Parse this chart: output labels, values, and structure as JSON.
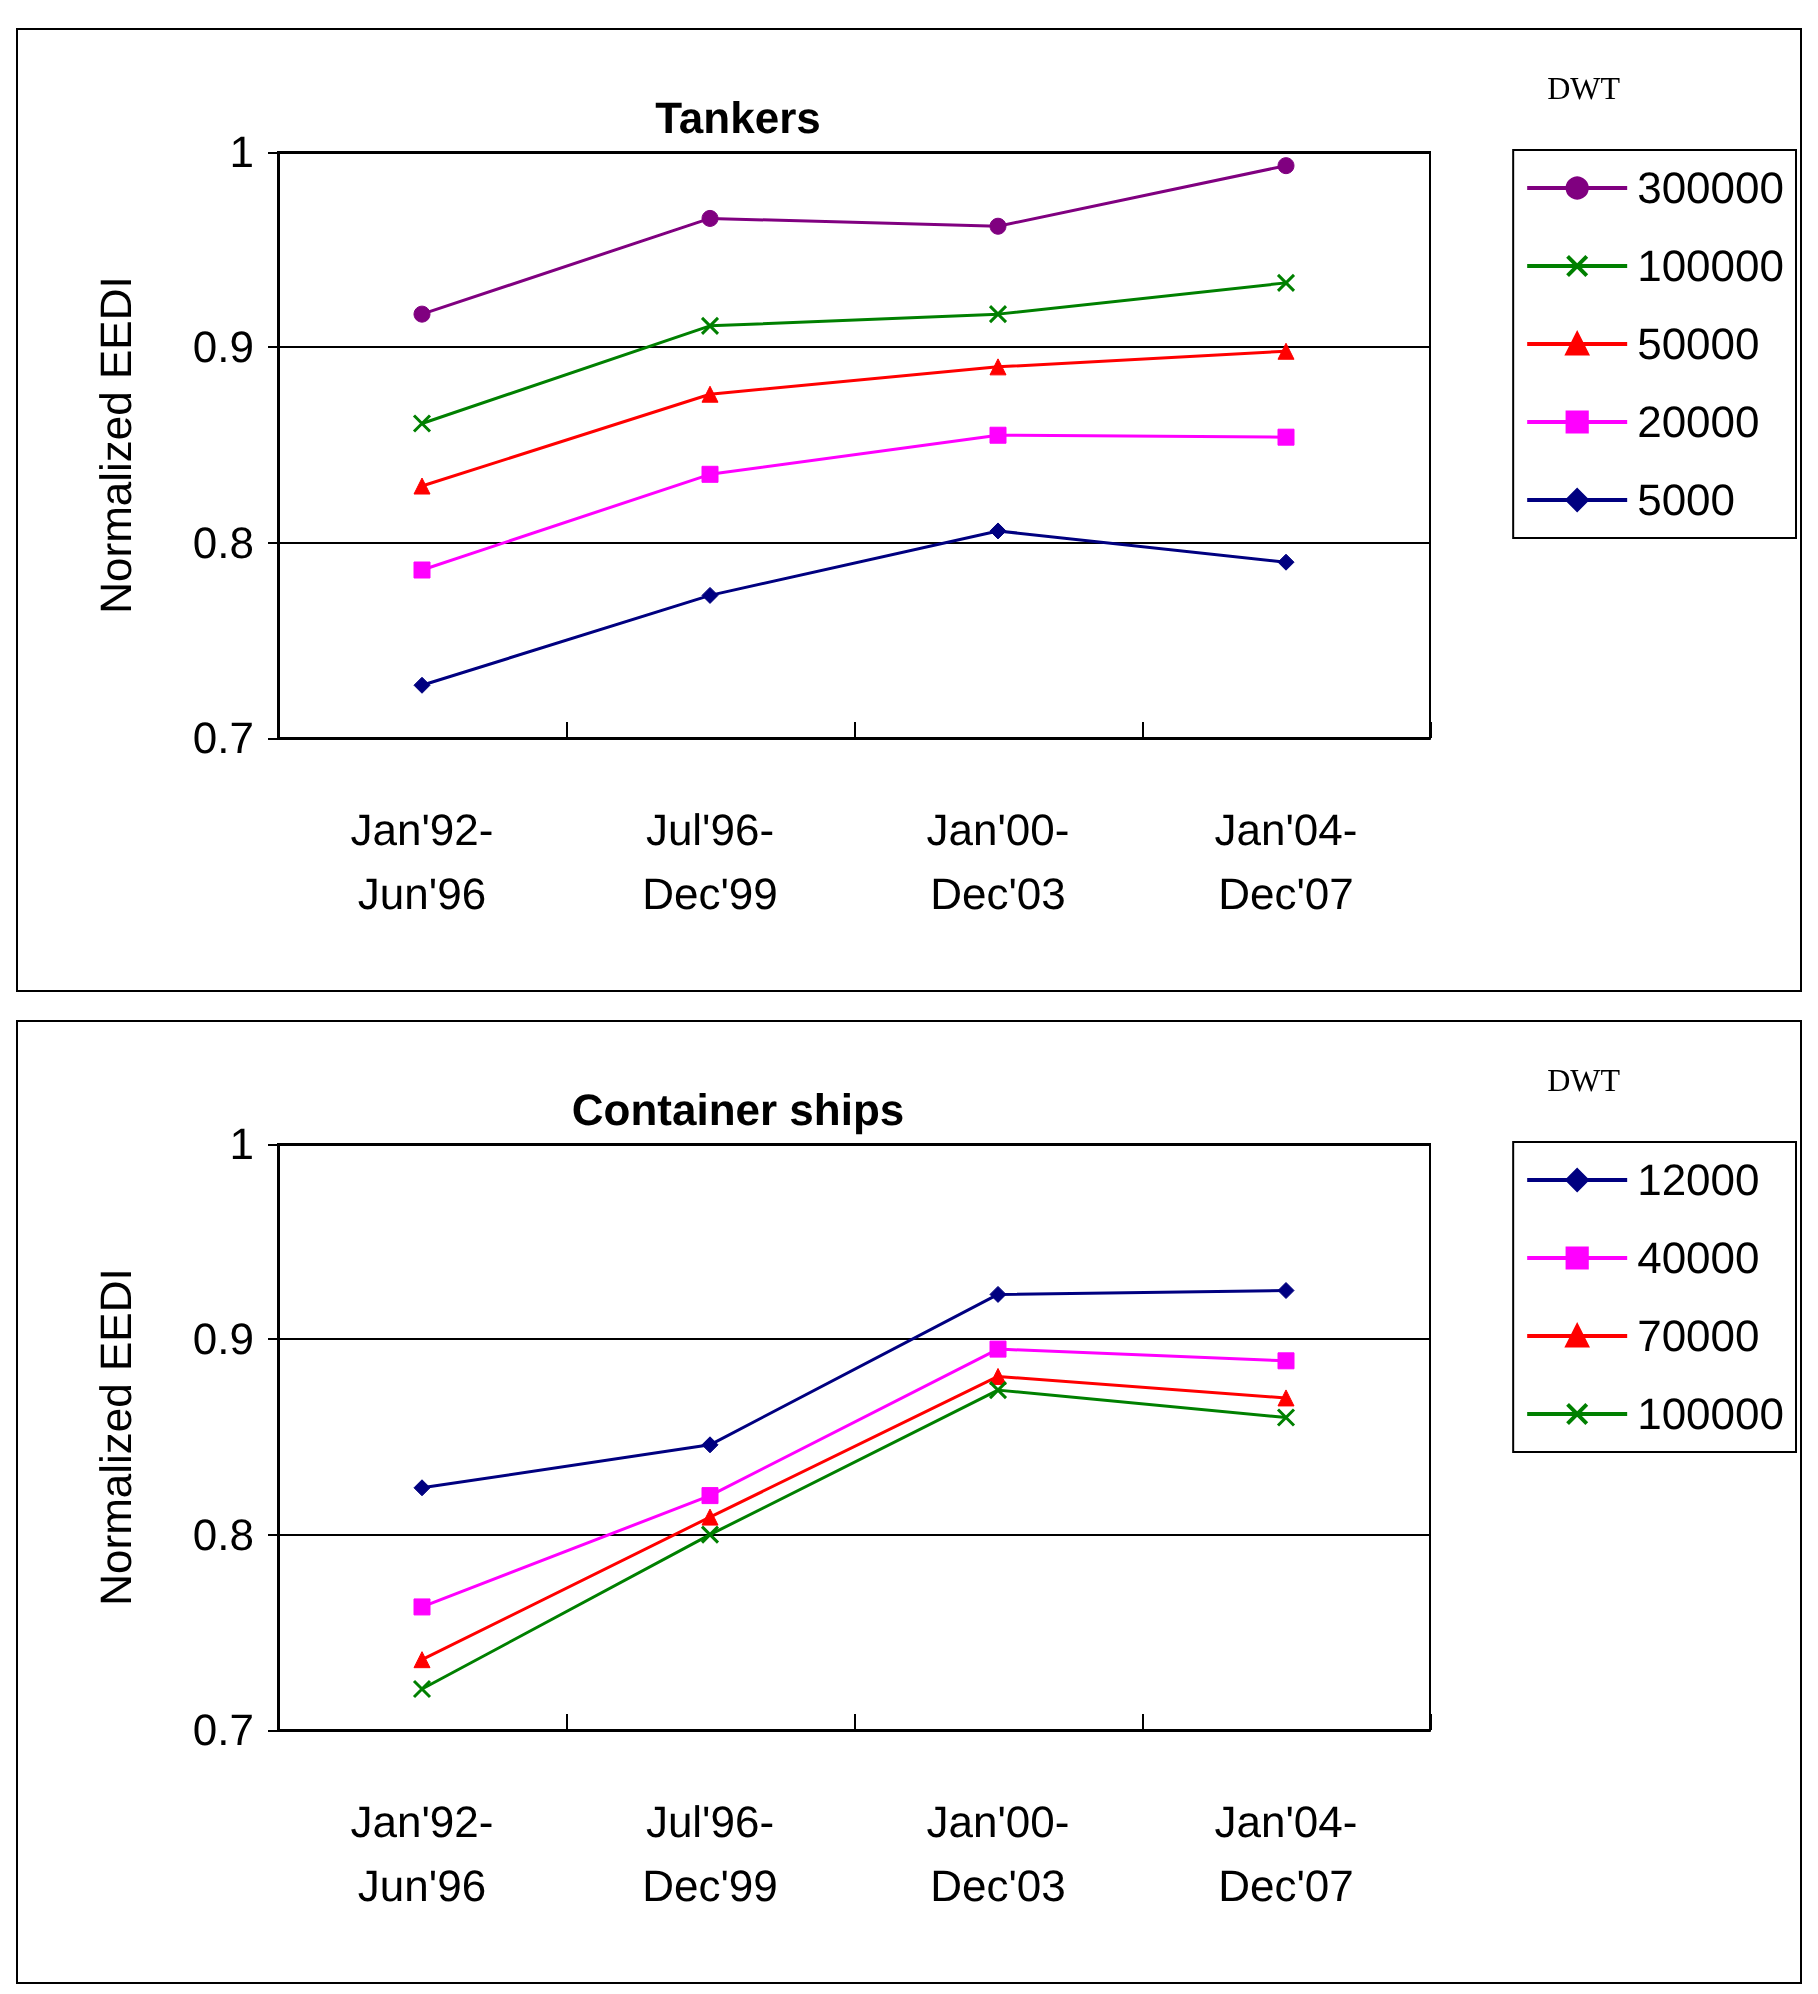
{
  "chart_data": [
    {
      "type": "line",
      "title": "Tankers",
      "ylabel": "Normalized EEDI",
      "legend_title": "DWT",
      "categories": [
        "Jan'92-\nJun'96",
        "Jul'96-\nDec'99",
        "Jan'00-\nDec'03",
        "Jan'04-\nDec'07"
      ],
      "ylim": [
        0.7,
        1
      ],
      "yticks": [
        0.7,
        0.8,
        0.9,
        1
      ],
      "grid": "y",
      "legend": "right",
      "series": [
        {
          "name": "300000",
          "color": "#800080",
          "marker": "circle",
          "values": [
            0.917,
            0.966,
            0.962,
            0.993
          ]
        },
        {
          "name": "100000",
          "color": "#008000",
          "marker": "cross",
          "values": [
            0.861,
            0.911,
            0.917,
            0.933
          ]
        },
        {
          "name": "50000",
          "color": "#ff0000",
          "marker": "triangle",
          "values": [
            0.829,
            0.876,
            0.89,
            0.898
          ]
        },
        {
          "name": "20000",
          "color": "#ff00ff",
          "marker": "square",
          "values": [
            0.786,
            0.835,
            0.855,
            0.854
          ]
        },
        {
          "name": "5000",
          "color": "#000080",
          "marker": "diamond",
          "values": [
            0.727,
            0.773,
            0.806,
            0.79
          ]
        }
      ]
    },
    {
      "type": "line",
      "title": "Container ships",
      "ylabel": "Normalized EEDI",
      "legend_title": "DWT",
      "categories": [
        "Jan'92-\nJun'96",
        "Jul'96-\nDec'99",
        "Jan'00-\nDec'03",
        "Jan'04-\nDec'07"
      ],
      "ylim": [
        0.7,
        1
      ],
      "yticks": [
        0.7,
        0.8,
        0.9,
        1
      ],
      "grid": "y",
      "legend": "right",
      "series": [
        {
          "name": "12000",
          "color": "#000080",
          "marker": "diamond",
          "values": [
            0.824,
            0.846,
            0.923,
            0.925
          ]
        },
        {
          "name": "40000",
          "color": "#ff00ff",
          "marker": "square",
          "values": [
            0.763,
            0.82,
            0.895,
            0.889
          ]
        },
        {
          "name": "70000",
          "color": "#ff0000",
          "marker": "triangle",
          "values": [
            0.736,
            0.809,
            0.881,
            0.87
          ]
        },
        {
          "name": "100000",
          "color": "#008000",
          "marker": "cross",
          "values": [
            0.721,
            0.8,
            0.874,
            0.86
          ]
        }
      ]
    }
  ]
}
